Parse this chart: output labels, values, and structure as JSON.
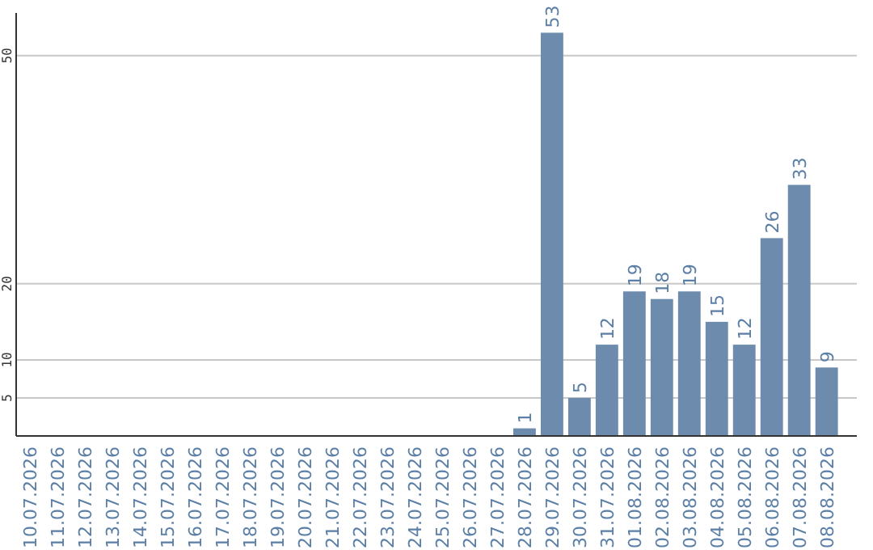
{
  "chart_data": {
    "type": "bar",
    "categories": [
      "10.07.2026",
      "11.07.2026",
      "12.07.2026",
      "13.07.2026",
      "14.07.2026",
      "15.07.2026",
      "16.07.2026",
      "17.07.2026",
      "18.07.2026",
      "19.07.2026",
      "20.07.2026",
      "21.07.2026",
      "22.07.2026",
      "23.07.2026",
      "24.07.2026",
      "25.07.2026",
      "26.07.2026",
      "27.07.2026",
      "28.07.2026",
      "29.07.2026",
      "30.07.2026",
      "31.07.2026",
      "01.08.2026",
      "02.08.2026",
      "03.08.2026",
      "04.08.2026",
      "05.08.2026",
      "06.08.2026",
      "07.08.2026",
      "08.08.2026"
    ],
    "values": [
      0,
      0,
      0,
      0,
      0,
      0,
      0,
      0,
      0,
      0,
      0,
      0,
      0,
      0,
      0,
      0,
      0,
      0,
      1,
      53,
      5,
      12,
      19,
      18,
      19,
      15,
      12,
      26,
      33,
      9
    ],
    "value_labels": [
      null,
      null,
      null,
      null,
      null,
      null,
      null,
      null,
      null,
      null,
      null,
      null,
      null,
      null,
      null,
      null,
      null,
      null,
      "1",
      "53",
      "5",
      "12",
      "19",
      "18",
      "19",
      "15",
      "12",
      "26",
      "33",
      "9"
    ],
    "color": "#6d8cad",
    "ylim": [
      0,
      55.6
    ],
    "yticks": [
      5,
      10,
      20,
      50
    ],
    "grid": "y"
  }
}
